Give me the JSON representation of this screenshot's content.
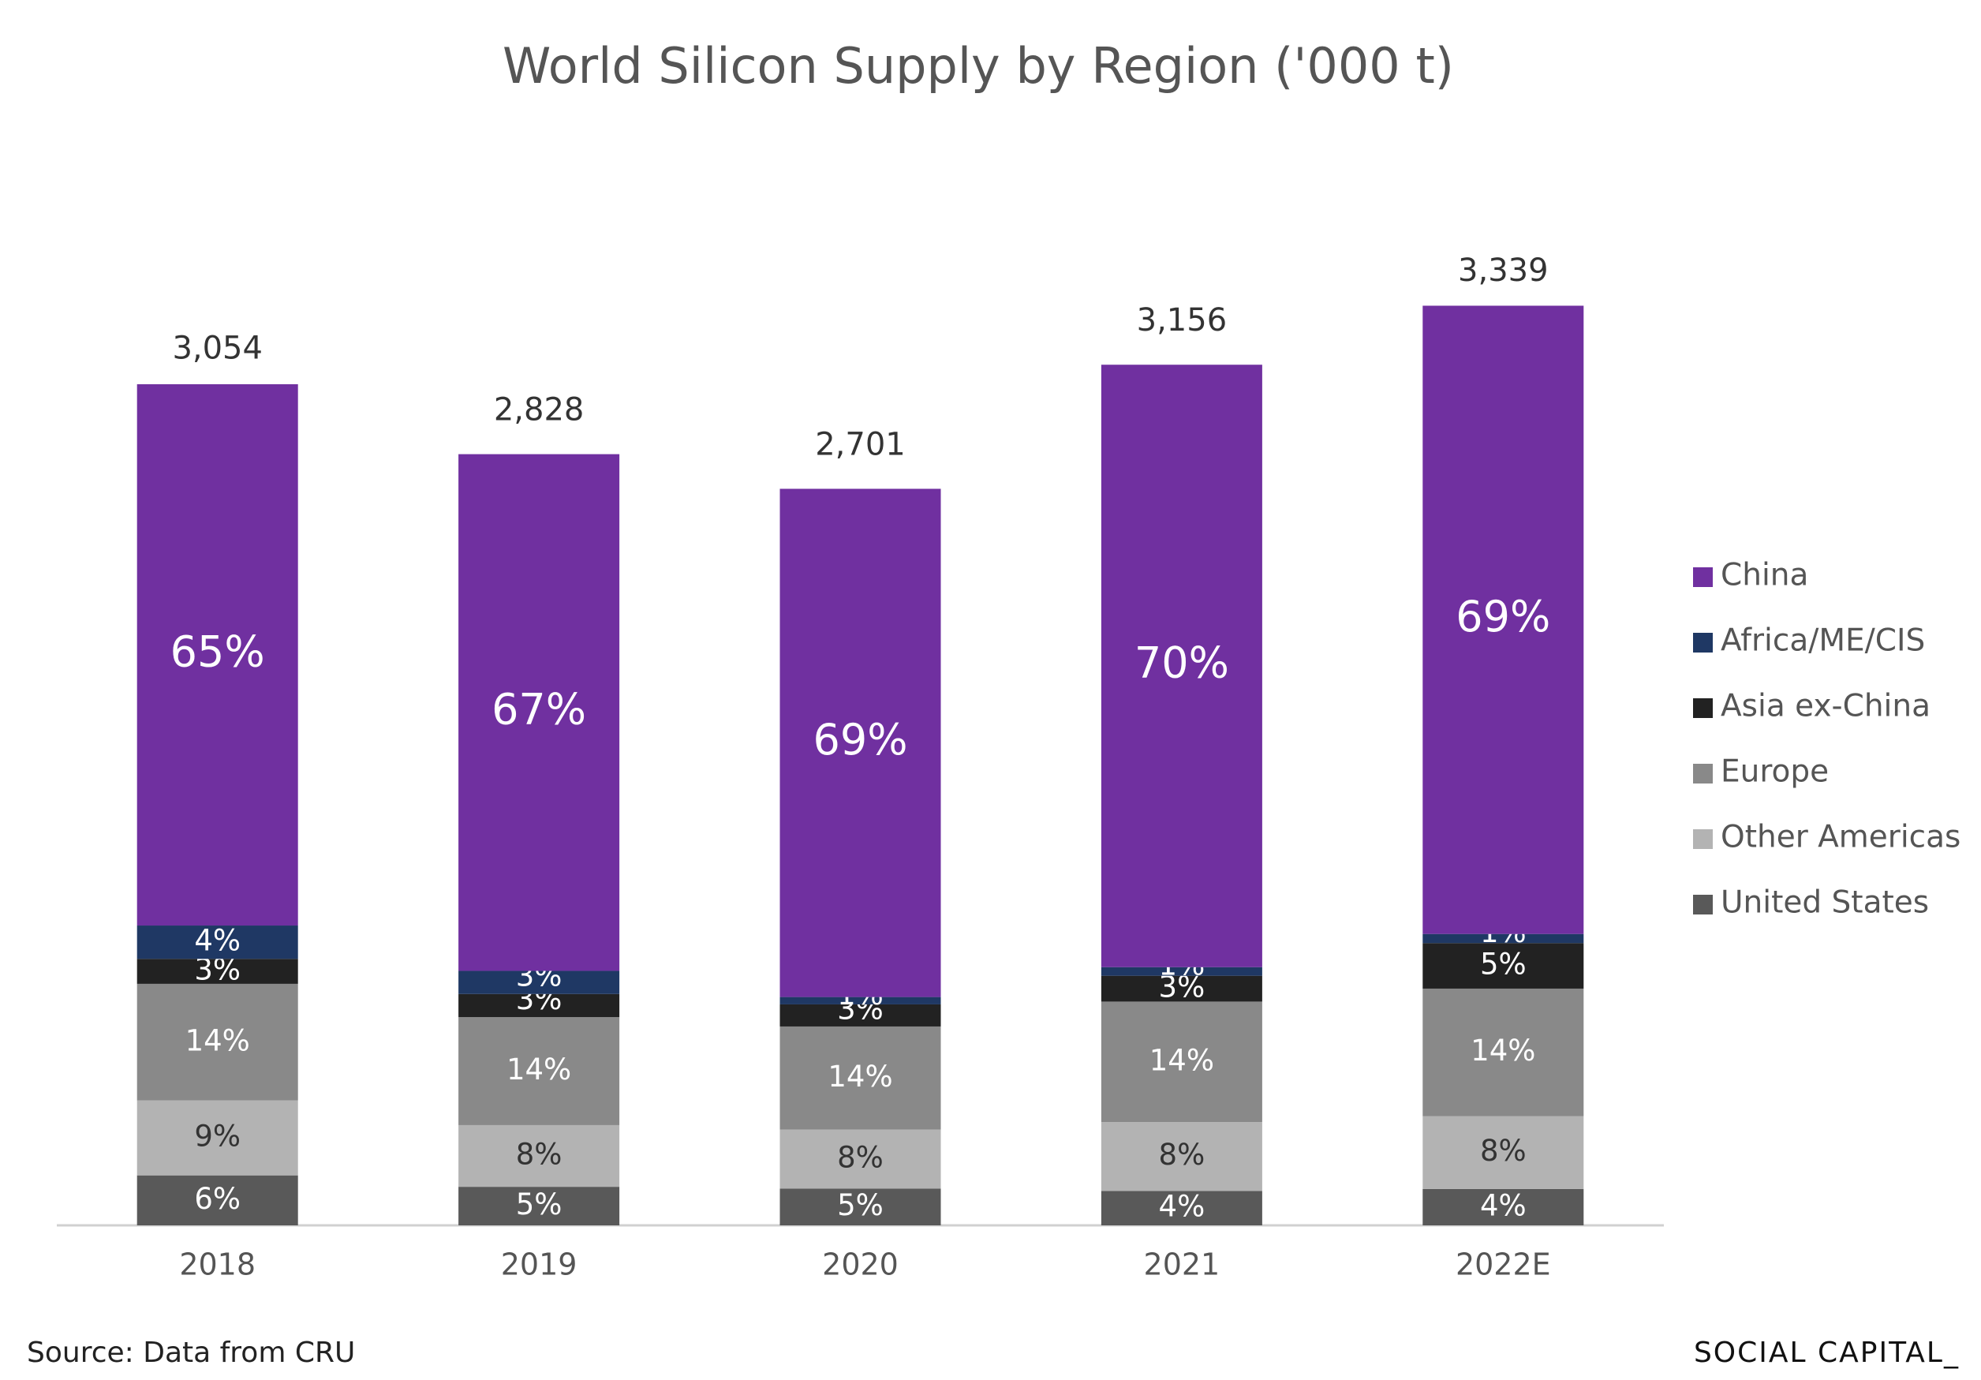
{
  "chart_data": {
    "type": "stacked_bar",
    "title": "World Silicon Supply by Region  ('000 t)",
    "source": "Source: Data from CRU",
    "brand": "SOCIAL CAPITAL_",
    "categories": [
      "2018",
      "2019",
      "2020",
      "2021",
      "2022E"
    ],
    "totals": {
      "values": [
        3054,
        2828,
        2701,
        3156,
        3339
      ],
      "value_labels": [
        "3,054",
        "2,828",
        "2,701",
        "3,156",
        "3,339"
      ]
    },
    "series": [
      {
        "name": "United States",
        "color": "#595959",
        "values": [
          6,
          5,
          5,
          4,
          4
        ],
        "value_labels": [
          "6%",
          "5%",
          "5%",
          "4%",
          "4%"
        ]
      },
      {
        "name": "Other Americas",
        "color": "#b3b3b3",
        "values": [
          9,
          8,
          8,
          8,
          8
        ],
        "value_labels": [
          "9%",
          "8%",
          "8%",
          "8%",
          "8%"
        ]
      },
      {
        "name": "Europe",
        "color": "#898989",
        "values": [
          14,
          14,
          14,
          14,
          14
        ],
        "value_labels": [
          "14%",
          "14%",
          "14%",
          "14%",
          "14%"
        ]
      },
      {
        "name": "Asia ex-China",
        "color": "#222222",
        "values": [
          3,
          3,
          3,
          3,
          5
        ],
        "value_labels": [
          "3%",
          "3%",
          "3%",
          "3%",
          "5%"
        ]
      },
      {
        "name": "Africa/ME/CIS",
        "color": "#1f3864",
        "values": [
          4,
          3,
          1,
          1,
          1
        ],
        "value_labels": [
          "4%",
          "3%",
          "1%",
          "1%",
          "1%"
        ]
      },
      {
        "name": "China",
        "color": "#7030a0",
        "values": [
          65,
          67,
          69,
          70,
          69
        ],
        "value_labels": [
          "65%",
          "67%",
          "69%",
          "70%",
          "69%"
        ]
      }
    ]
  }
}
